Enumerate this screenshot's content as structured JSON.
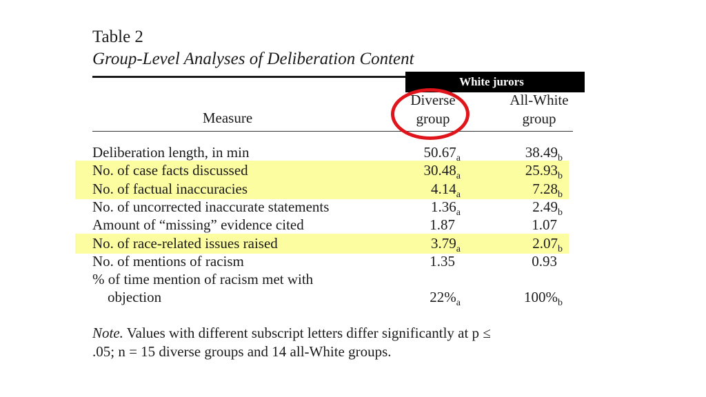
{
  "table": {
    "label": "Table 2",
    "title": "Group-Level Analyses of Deliberation Content",
    "banner": "White jurors",
    "headers": {
      "measure": "Measure",
      "diverse_line1": "Diverse",
      "diverse_line2": "group",
      "allwhite_line1": "All-White",
      "allwhite_line2": "group"
    },
    "rows": [
      {
        "measure": "Deliberation length, in min",
        "diverse": "50.67",
        "diverse_sub": "a",
        "allwhite": "38.49",
        "allwhite_sub": "b",
        "highlight": false
      },
      {
        "measure": "No. of case facts discussed",
        "diverse": "30.48",
        "diverse_sub": "a",
        "allwhite": "25.93",
        "allwhite_sub": "b",
        "highlight": true
      },
      {
        "measure": "No. of factual inaccuracies",
        "diverse": "4.14",
        "diverse_sub": "a",
        "allwhite": "7.28",
        "allwhite_sub": "b",
        "highlight": true
      },
      {
        "measure": "No. of uncorrected inaccurate statements",
        "diverse": "1.36",
        "diverse_sub": "a",
        "allwhite": "2.49",
        "allwhite_sub": "b",
        "highlight": false
      },
      {
        "measure": "Amount of “missing” evidence cited",
        "diverse": "1.87",
        "diverse_sub": "",
        "allwhite": "1.07",
        "allwhite_sub": "",
        "highlight": false
      },
      {
        "measure": "No. of race-related issues raised",
        "diverse": "3.79",
        "diverse_sub": "a",
        "allwhite": "2.07",
        "allwhite_sub": "b",
        "highlight": true
      },
      {
        "measure": "No. of mentions of racism",
        "diverse": "1.35",
        "diverse_sub": "",
        "allwhite": "0.93",
        "allwhite_sub": "",
        "highlight": false
      },
      {
        "measure": "% of time mention of racism met with",
        "diverse": "",
        "diverse_sub": "",
        "allwhite": "",
        "allwhite_sub": "",
        "highlight": false
      },
      {
        "measure": "objection",
        "diverse": "22%",
        "diverse_sub": "a",
        "allwhite": "100%",
        "allwhite_sub": "b",
        "highlight": false,
        "indent": true
      }
    ],
    "note": {
      "label": "Note.",
      "text_line1": "Values with different subscript letters differ significantly at p ≤",
      "text_line2": ".05; n = 15 diverse groups and 14 all-White groups."
    }
  },
  "colors": {
    "highlight": "#fcfca0",
    "circle": "#e0141b",
    "banner_bg": "#000000",
    "banner_text": "#ffffff"
  }
}
